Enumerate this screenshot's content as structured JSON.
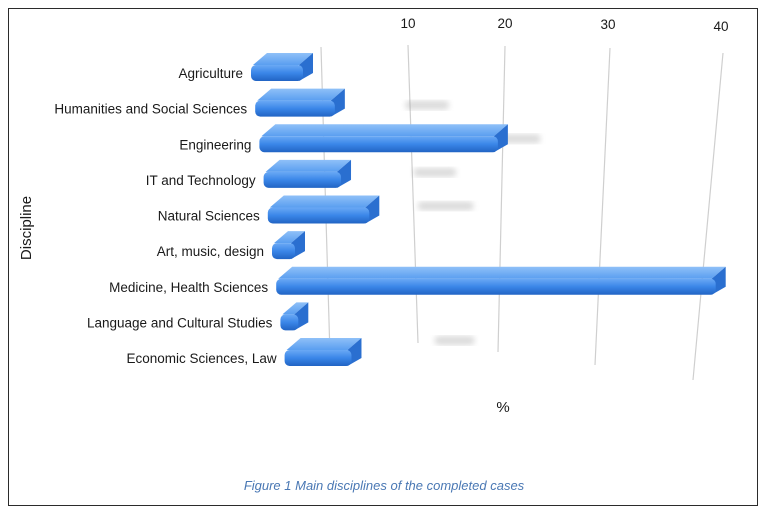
{
  "chart_data": {
    "type": "bar",
    "orientation": "horizontal",
    "style": "3d",
    "categories": [
      "Agriculture",
      "Humanities and Social Sciences",
      "Engineering",
      "IT and Technology",
      "Natural Sciences",
      "Art, music, design",
      "Medicine, Health Sciences",
      "Language and Cultural Studies",
      "Economic Sciences, Law"
    ],
    "values": [
      5,
      7.5,
      22,
      7,
      9,
      2,
      37.5,
      1.5,
      5.5
    ],
    "xlabel": "%",
    "ylabel": "Discipline",
    "xticks": [
      10,
      20,
      30,
      40
    ],
    "xlim": [
      0,
      40
    ],
    "grid": true,
    "colors": {
      "bar": "#3a86e8",
      "bar_dark": "#2164c4",
      "bar_light": "#6aa9f5"
    }
  },
  "caption": "Figure 1 Main disciplines of the completed cases"
}
